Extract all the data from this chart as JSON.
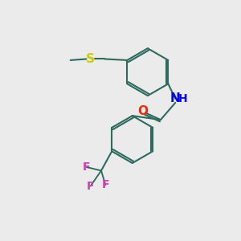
{
  "background_color": "#ebebeb",
  "bond_color": "#2d6b5e",
  "atom_colors": {
    "S": "#cccc00",
    "O": "#ff2200",
    "N": "#0000ee",
    "H": "#0000ee",
    "F": "#cc44aa",
    "C": "#2d6b5e"
  },
  "line_width": 1.5,
  "font_size": 10,
  "figsize": [
    3.0,
    3.0
  ],
  "dpi": 100,
  "xlim": [
    0,
    10
  ],
  "ylim": [
    0,
    10
  ]
}
